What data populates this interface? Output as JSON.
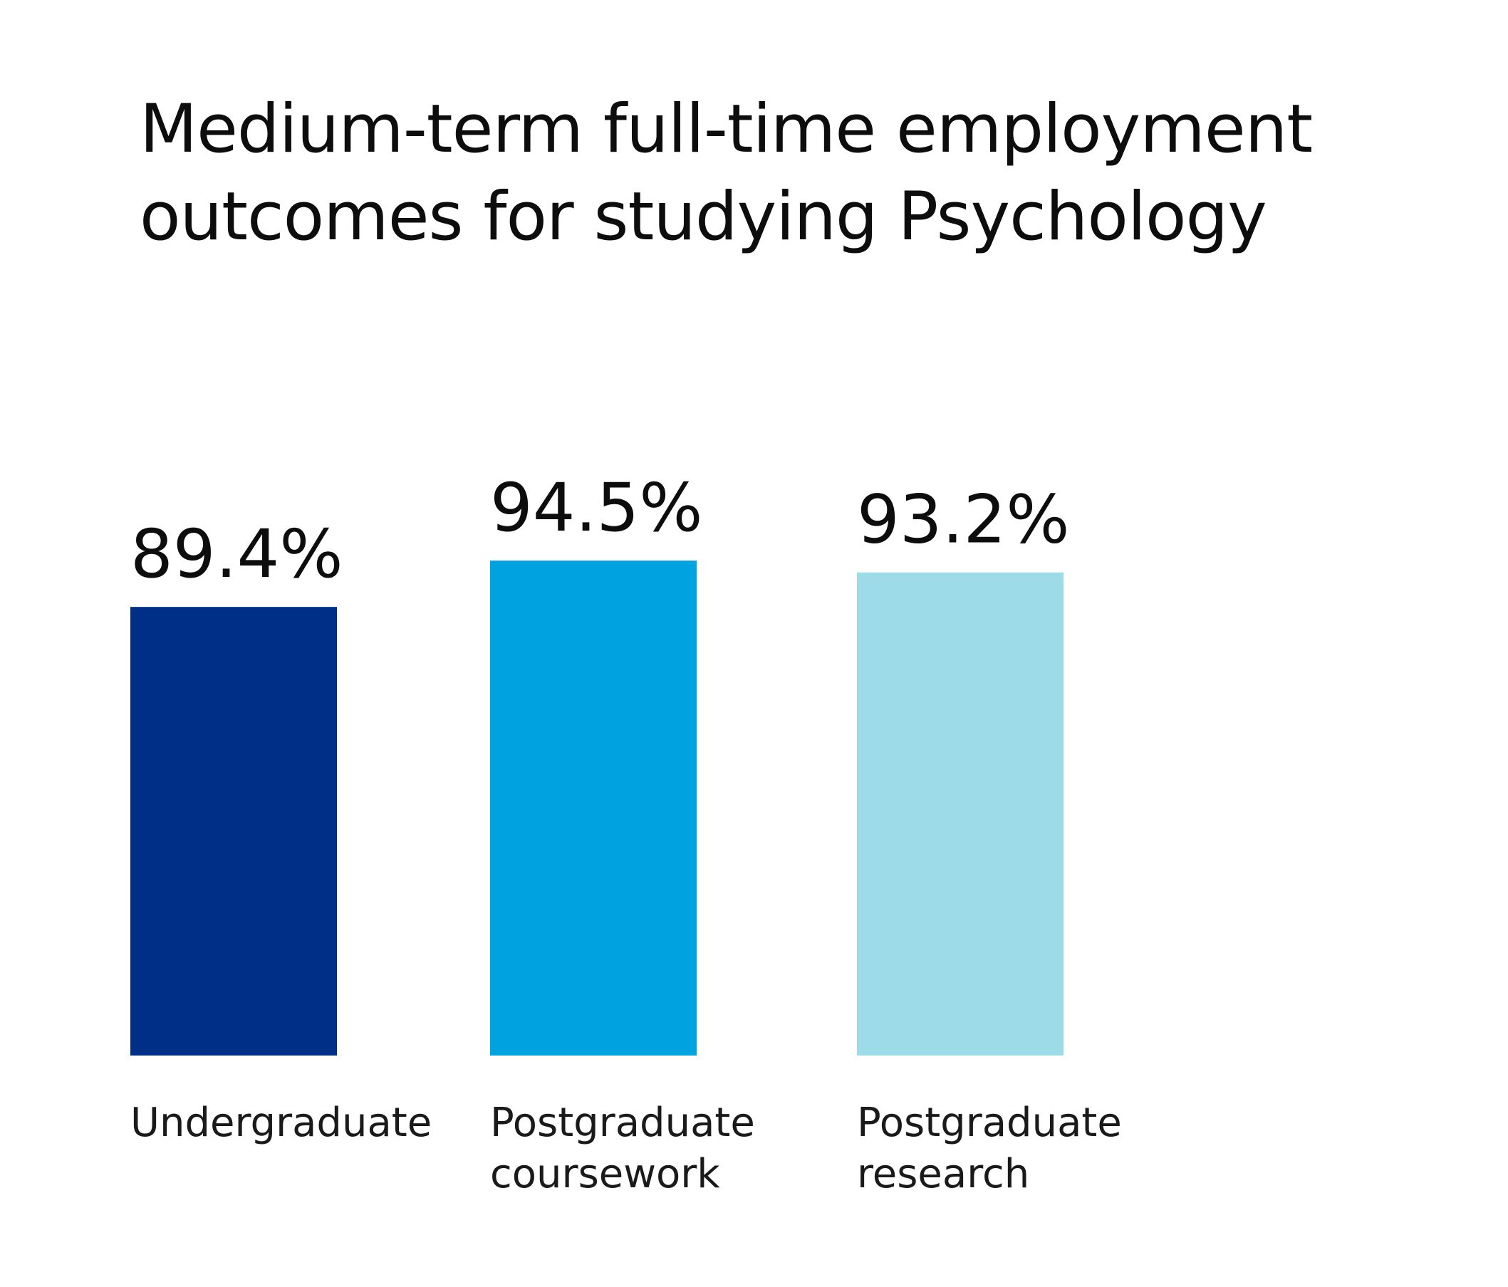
{
  "chart_data": {
    "type": "bar",
    "title_lines": [
      "Medium-term full-time employment",
      "outcomes for studying Psychology"
    ],
    "categories": [
      [
        "Undergraduate"
      ],
      [
        "Postgraduate",
        "coursework"
      ],
      [
        "Postgraduate",
        "research"
      ]
    ],
    "values": [
      89.4,
      94.5,
      93.2
    ],
    "value_labels": [
      "89.4%",
      "94.5%",
      "93.2%"
    ],
    "colors": [
      "#002f87",
      "#00a3e0",
      "#9cdbe7"
    ],
    "ylabel": "",
    "xlabel": "",
    "ylim": [
      40,
      100
    ],
    "grid": false,
    "legend": "none"
  }
}
